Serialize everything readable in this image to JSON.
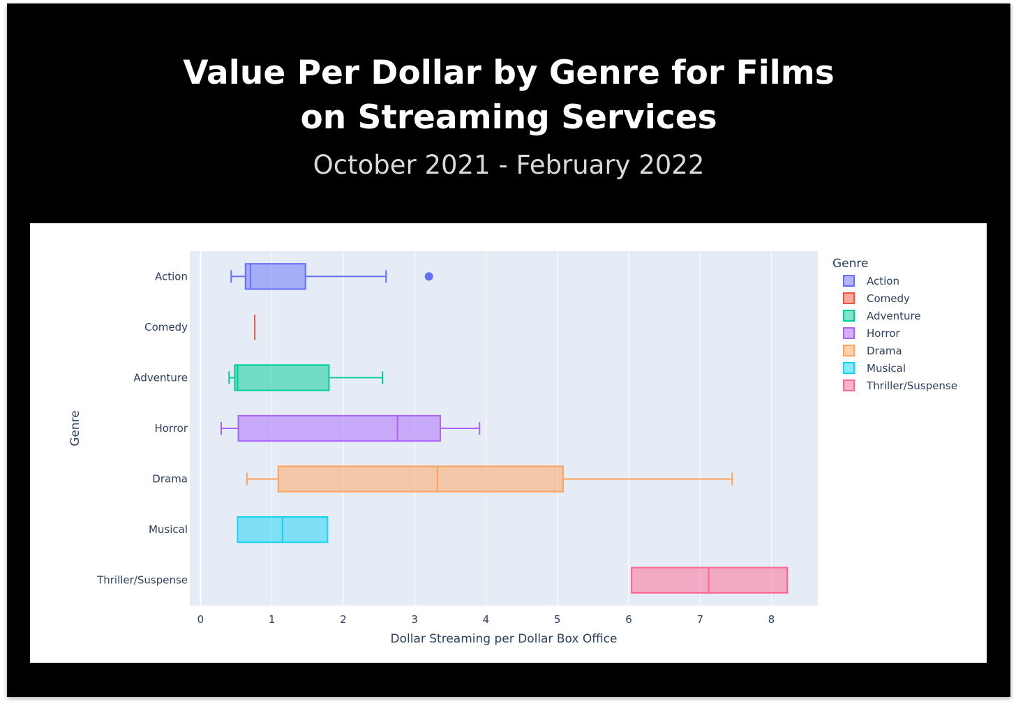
{
  "header": {
    "title_line1": "Value Per Dollar by Genre for Films",
    "title_line2": "on Streaming Services",
    "subtitle": "October 2021 - February 2022"
  },
  "chart_data": {
    "type": "box",
    "orientation": "horizontal",
    "xlabel": "Dollar Streaming per Dollar Box Office",
    "ylabel": "Genre",
    "xlim": [
      -0.15,
      8.65
    ],
    "x_ticks": [
      0,
      1,
      2,
      3,
      4,
      5,
      6,
      7,
      8
    ],
    "grid": true,
    "plot_background": "#e5ecf6",
    "legend": {
      "title": "Genre",
      "placement": "right"
    },
    "series": [
      {
        "name": "Action",
        "color": "#636efa",
        "min": 0.43,
        "q1": 0.63,
        "median": 0.7,
        "q3": 1.47,
        "max": 2.6,
        "outliers": [
          3.2
        ]
      },
      {
        "name": "Comedy",
        "color": "#ef553b",
        "min": 0.76,
        "q1": 0.76,
        "median": 0.76,
        "q3": 0.76,
        "max": 0.76,
        "outliers": []
      },
      {
        "name": "Adventure",
        "color": "#00cc96",
        "min": 0.4,
        "q1": 0.48,
        "median": 0.52,
        "q3": 1.8,
        "max": 2.55,
        "outliers": []
      },
      {
        "name": "Horror",
        "color": "#ab63fa",
        "min": 0.29,
        "q1": 0.53,
        "median": 2.76,
        "q3": 3.36,
        "max": 3.91,
        "outliers": []
      },
      {
        "name": "Drama",
        "color": "#ffa15a",
        "min": 0.65,
        "q1": 1.09,
        "median": 3.32,
        "q3": 5.08,
        "max": 7.45,
        "outliers": []
      },
      {
        "name": "Musical",
        "color": "#19d3f3",
        "min": 0.52,
        "q1": 0.52,
        "median": 1.15,
        "q3": 1.78,
        "max": 1.78,
        "outliers": []
      },
      {
        "name": "Thriller/Suspense",
        "color": "#ff6692",
        "min": 6.04,
        "q1": 6.04,
        "median": 7.12,
        "q3": 8.22,
        "max": 8.22,
        "outliers": []
      }
    ]
  }
}
